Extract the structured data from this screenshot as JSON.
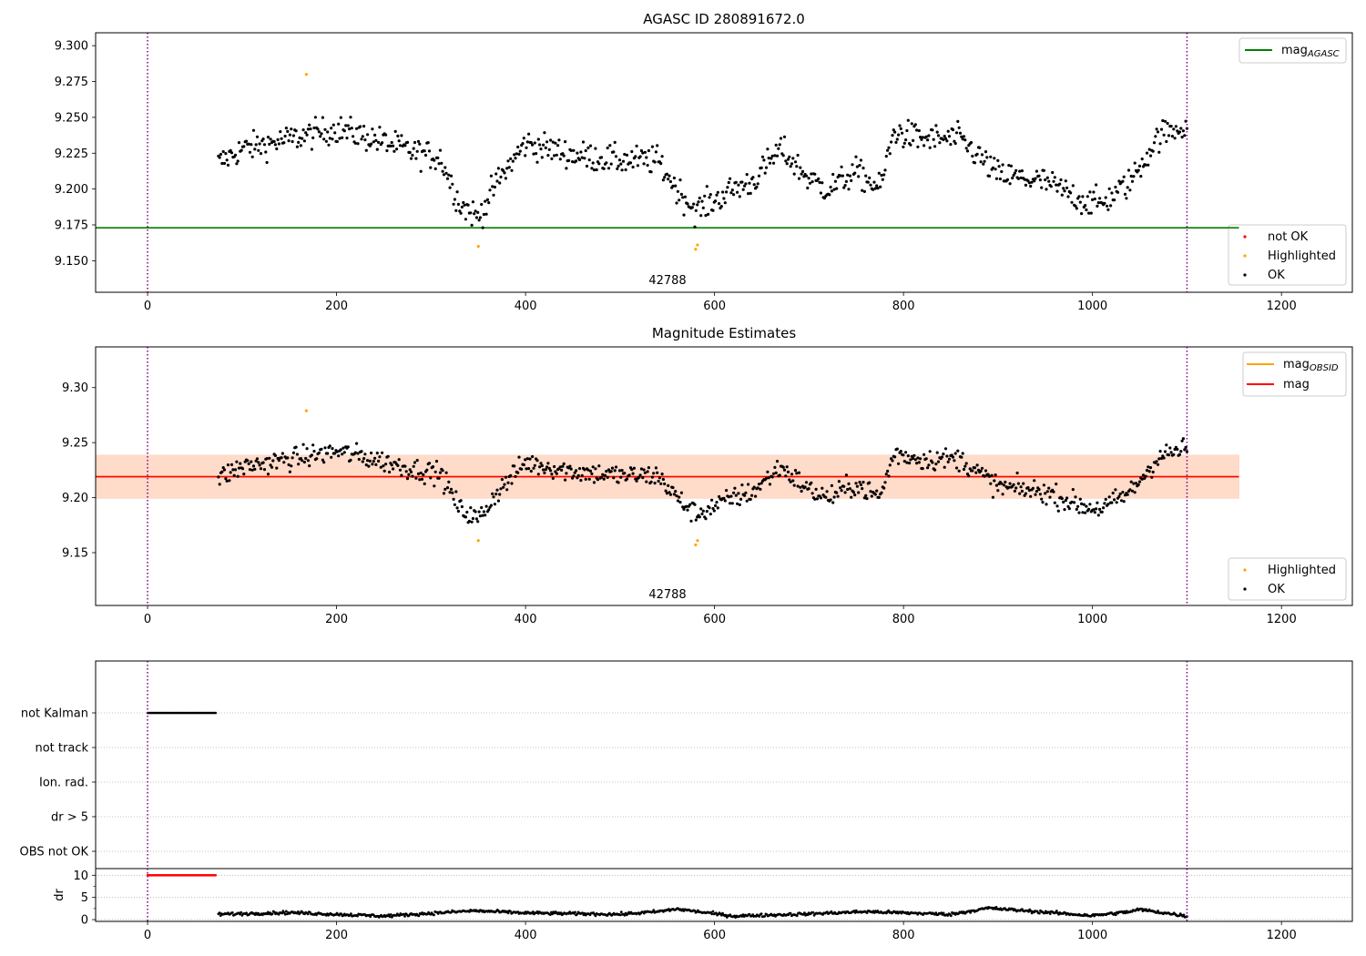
{
  "chart_data": [
    {
      "type": "scatter",
      "title": "AGASC ID 280891672.0",
      "xlim": [
        -55,
        1275
      ],
      "ylim": [
        9.128,
        9.309
      ],
      "xticks": [
        0,
        200,
        400,
        600,
        800,
        1000,
        1200
      ],
      "yticks": [
        9.15,
        9.175,
        9.2,
        9.225,
        9.25,
        9.275,
        9.3
      ],
      "ytick_labels": [
        "9.150",
        "9.175",
        "9.200",
        "9.225",
        "9.250",
        "9.275",
        "9.300"
      ],
      "grid": false,
      "vlines": [
        0,
        1100
      ],
      "vline_color": "#800080",
      "reference_line": {
        "name": "mag",
        "subscript": "AGASC",
        "value": 9.173,
        "color": "#008000"
      },
      "annotation": {
        "text": "42788",
        "x": 550
      },
      "line_legend_position": "upper right",
      "legend_position": "lower right",
      "legend": [
        {
          "label": "not OK",
          "color": "#ff0000"
        },
        {
          "label": "Highlighted",
          "color": "#ffa500"
        },
        {
          "label": "OK",
          "color": "#000000"
        }
      ],
      "series": [
        {
          "name": "OK",
          "color": "#000000",
          "anchors_x": [
            75,
            100,
            130,
            165,
            200,
            240,
            280,
            310,
            330,
            350,
            370,
            400,
            450,
            500,
            540,
            560,
            580,
            600,
            620,
            640,
            670,
            700,
            720,
            750,
            775,
            790,
            820,
            860,
            900,
            950,
            990,
            1010,
            1040,
            1070,
            1100
          ],
          "anchors_y": [
            9.218,
            9.228,
            9.232,
            9.237,
            9.242,
            9.235,
            9.226,
            9.222,
            9.19,
            9.18,
            9.205,
            9.232,
            9.224,
            9.22,
            9.22,
            9.2,
            9.185,
            9.192,
            9.2,
            9.205,
            9.228,
            9.207,
            9.2,
            9.212,
            9.2,
            9.24,
            9.235,
            9.235,
            9.21,
            9.205,
            9.192,
            9.19,
            9.205,
            9.237,
            9.245
          ],
          "x_start": 75,
          "x_end": 1100,
          "count": 800
        },
        {
          "name": "Highlighted",
          "color": "#ffa500",
          "x": [
            168,
            350,
            580,
            582
          ],
          "y": [
            9.28,
            9.16,
            9.158,
            9.161
          ]
        }
      ]
    },
    {
      "type": "scatter",
      "title": "Magnitude Estimates",
      "xlim": [
        -55,
        1275
      ],
      "ylim": [
        9.102,
        9.337
      ],
      "xticks": [
        0,
        200,
        400,
        600,
        800,
        1000,
        1200
      ],
      "yticks": [
        9.15,
        9.2,
        9.25,
        9.3
      ],
      "ytick_labels": [
        "9.15",
        "9.20",
        "9.25",
        "9.30"
      ],
      "grid": false,
      "vlines": [
        0,
        1100
      ],
      "vline_color": "#800080",
      "band": {
        "y_low": 9.199,
        "y_high": 9.239,
        "x_start": -55,
        "x_end": 1155,
        "outer_color": "#ffc0cb",
        "inner_color": "#ffd9c6"
      },
      "lines": [
        {
          "name": "mag",
          "subscript": "OBSID",
          "value": 9.219,
          "color": "#ffa500"
        },
        {
          "name": "mag",
          "subscript": "",
          "value": 9.219,
          "color": "#ff0000"
        }
      ],
      "line_end_x": 1155,
      "annotation": {
        "text": "42788",
        "x": 550
      },
      "line_legend_position": "upper right",
      "legend_position": "lower right",
      "legend": [
        {
          "label": "Highlighted",
          "color": "#ffa500"
        },
        {
          "label": "OK",
          "color": "#000000"
        }
      ],
      "series": [
        {
          "name": "OK",
          "color": "#000000",
          "anchors_x": [
            75,
            100,
            130,
            165,
            200,
            240,
            280,
            310,
            330,
            350,
            370,
            400,
            450,
            500,
            540,
            560,
            580,
            600,
            620,
            640,
            670,
            700,
            720,
            750,
            775,
            790,
            820,
            860,
            900,
            950,
            990,
            1010,
            1040,
            1070,
            1100
          ],
          "anchors_y": [
            9.218,
            9.228,
            9.232,
            9.237,
            9.242,
            9.235,
            9.226,
            9.222,
            9.19,
            9.18,
            9.205,
            9.232,
            9.224,
            9.22,
            9.22,
            9.2,
            9.185,
            9.192,
            9.2,
            9.205,
            9.228,
            9.207,
            9.2,
            9.212,
            9.2,
            9.24,
            9.235,
            9.235,
            9.21,
            9.205,
            9.192,
            9.19,
            9.205,
            9.237,
            9.245
          ],
          "x_start": 75,
          "x_end": 1100,
          "count": 800
        },
        {
          "name": "Highlighted",
          "color": "#ffa500",
          "x": [
            168,
            350,
            580,
            582
          ],
          "y": [
            9.279,
            9.161,
            9.157,
            9.161
          ]
        }
      ]
    },
    {
      "type": "scatter",
      "title": "",
      "xlim": [
        -55,
        1275
      ],
      "ylim": [
        -0.5,
        5.5
      ],
      "xticks": [],
      "ytick_labels": [
        "OBS not OK",
        "dr > 5",
        "Ion. rad.",
        "not track",
        "not Kalman"
      ],
      "yticks": [
        0,
        1,
        2,
        3,
        4
      ],
      "grid": "y-dotted",
      "vlines": [
        0,
        1100
      ],
      "vline_color": "#800080",
      "series": [
        {
          "name": "not Kalman",
          "color": "#000000",
          "y": 4,
          "x_start": 0,
          "x_end": 72,
          "count": 60
        }
      ]
    },
    {
      "type": "scatter",
      "title": "",
      "xlim": [
        -55,
        1275
      ],
      "ylim": [
        -0.4,
        11.5
      ],
      "xticks": [
        0,
        200,
        400,
        600,
        800,
        1000,
        1200
      ],
      "yticks": [
        0,
        5,
        10
      ],
      "ytick_labels": [
        "0",
        "5",
        "10"
      ],
      "ylabel": "dr",
      "grid": "y-dotted",
      "vlines": [
        0,
        1100
      ],
      "vline_color": "#800080",
      "series": [
        {
          "name": "dr > 5",
          "color": "#ff0000",
          "y": 10,
          "x_start": 0,
          "x_end": 72,
          "count": 60
        },
        {
          "name": "dr",
          "color": "#000000",
          "anchors_x": [
            75,
            150,
            250,
            345,
            400,
            500,
            540,
            560,
            620,
            700,
            760,
            850,
            890,
            1000,
            1040,
            1050,
            1100
          ],
          "anchors_y": [
            1.2,
            1.6,
            0.8,
            2.0,
            1.5,
            1.2,
            1.8,
            2.4,
            0.8,
            1.3,
            1.8,
            1.2,
            2.6,
            0.9,
            1.8,
            2.3,
            0.8
          ],
          "x_start": 75,
          "x_end": 1100,
          "count": 900
        }
      ]
    }
  ]
}
